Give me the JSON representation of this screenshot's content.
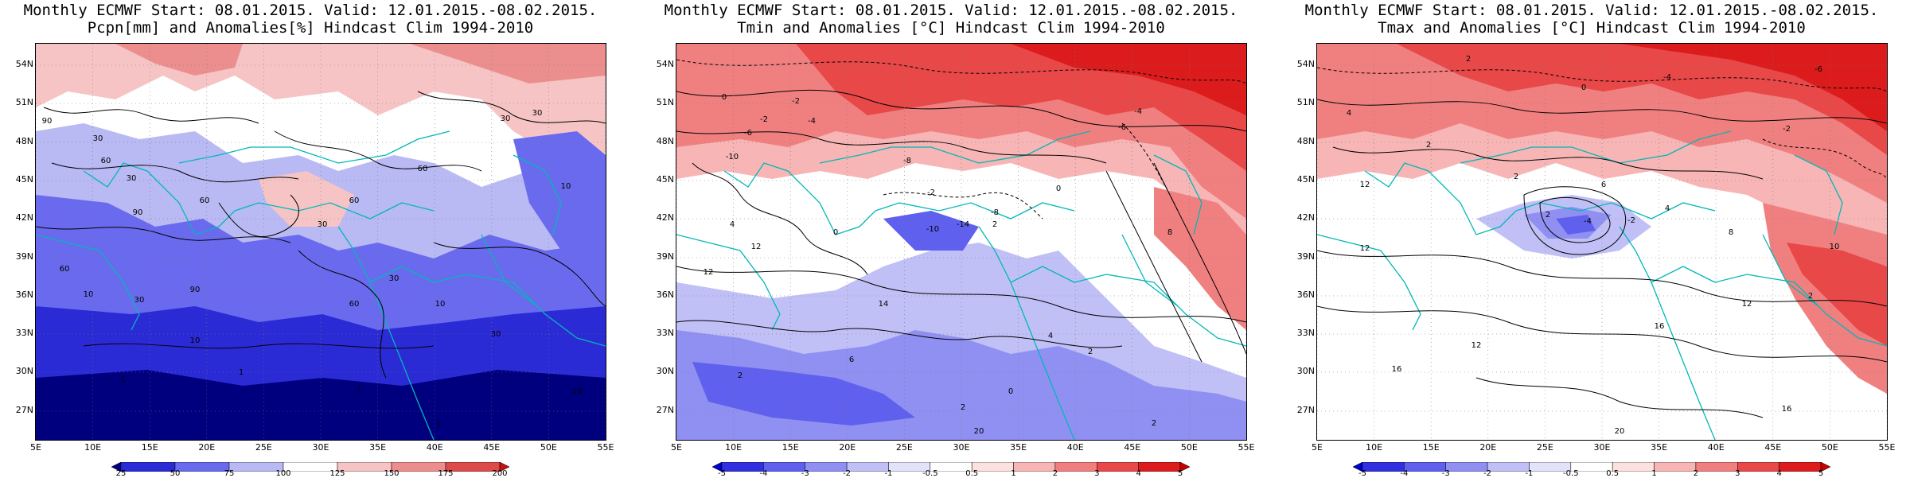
{
  "panels": [
    {
      "title_line1": "Monthly ECMWF Start: 08.01.2015. Valid: 12.01.2015.-08.02.2015.",
      "title_line2": "Pcpn[mm] and Anomalies[%] Hindcast Clim 1994-2010",
      "colorbar_labels": [
        "25",
        "50",
        "75",
        "100",
        "125",
        "150",
        "175",
        "200"
      ],
      "contour_labels": [
        "90",
        "30",
        "60",
        "30",
        "60",
        "90",
        "60",
        "30",
        "60",
        "10",
        "30",
        "90",
        "30",
        "60",
        "10",
        "30",
        "60",
        "10",
        "30",
        "10",
        "1",
        "1",
        "10",
        "1",
        "1",
        "30"
      ]
    },
    {
      "title_line1": "Monthly ECMWF Start: 08.01.2015. Valid: 12.01.2015.-08.02.2015.",
      "title_line2": "Tmin and Anomalies [°C] Hindcast Clim 1994-2010",
      "colorbar_labels": [
        "-5",
        "-4",
        "-3",
        "-2",
        "-1",
        "-0.5",
        "0.5",
        "1",
        "2",
        "3",
        "4",
        "5"
      ],
      "contour_labels": [
        "0",
        "-2",
        "-4",
        "-2",
        "-6",
        "-10",
        "-8",
        "-6",
        "-4",
        "-2",
        "0",
        "2",
        "4",
        "12",
        "8",
        "-10",
        "-14",
        "-8",
        "0",
        "12",
        "14",
        "6",
        "2",
        "4",
        "2",
        "0",
        "2",
        "20",
        "2"
      ]
    },
    {
      "title_line1": "Monthly ECMWF Start: 08.01.2015. Valid: 12.01.2015.-08.02.2015.",
      "title_line2": "Tmax and Anomalies [°C] Hindcast Clim 1994-2010",
      "colorbar_labels": [
        "-5",
        "-4",
        "-3",
        "-2",
        "-1",
        "-0.5",
        "0.5",
        "1",
        "2",
        "3",
        "4",
        "5"
      ],
      "contour_labels": [
        "2",
        "-4",
        "-6",
        "0",
        "-2",
        "4",
        "12",
        "2",
        "6",
        "2",
        "-4",
        "-2",
        "2",
        "4",
        "8",
        "12",
        "10",
        "16",
        "12",
        "16",
        "20",
        "16",
        "12",
        "2"
      ]
    }
  ],
  "axes": {
    "lat_labels": [
      "54N",
      "51N",
      "48N",
      "45N",
      "42N",
      "39N",
      "36N",
      "33N",
      "30N",
      "27N"
    ],
    "lon_labels": [
      "5E",
      "10E",
      "15E",
      "20E",
      "25E",
      "30E",
      "35E",
      "40E",
      "45E",
      "50E",
      "55E"
    ]
  },
  "colors": {
    "precip_scale": [
      "#00007f",
      "#2b2bd6",
      "#6a6aee",
      "#b9b9f4",
      "#ffffff",
      "#f6c4c4",
      "#ec8e8e",
      "#dd4a4a",
      "#c41212"
    ],
    "temp_scale": [
      "#0000c8",
      "#3030e0",
      "#6060ee",
      "#9090f2",
      "#c0c0f7",
      "#e2e2fb",
      "#ffffff",
      "#fde1e1",
      "#f7b5b5",
      "#f08080",
      "#e84848",
      "#dc1c1c",
      "#c80000"
    ],
    "coast": "#00b8b8",
    "contour": "#000000"
  }
}
